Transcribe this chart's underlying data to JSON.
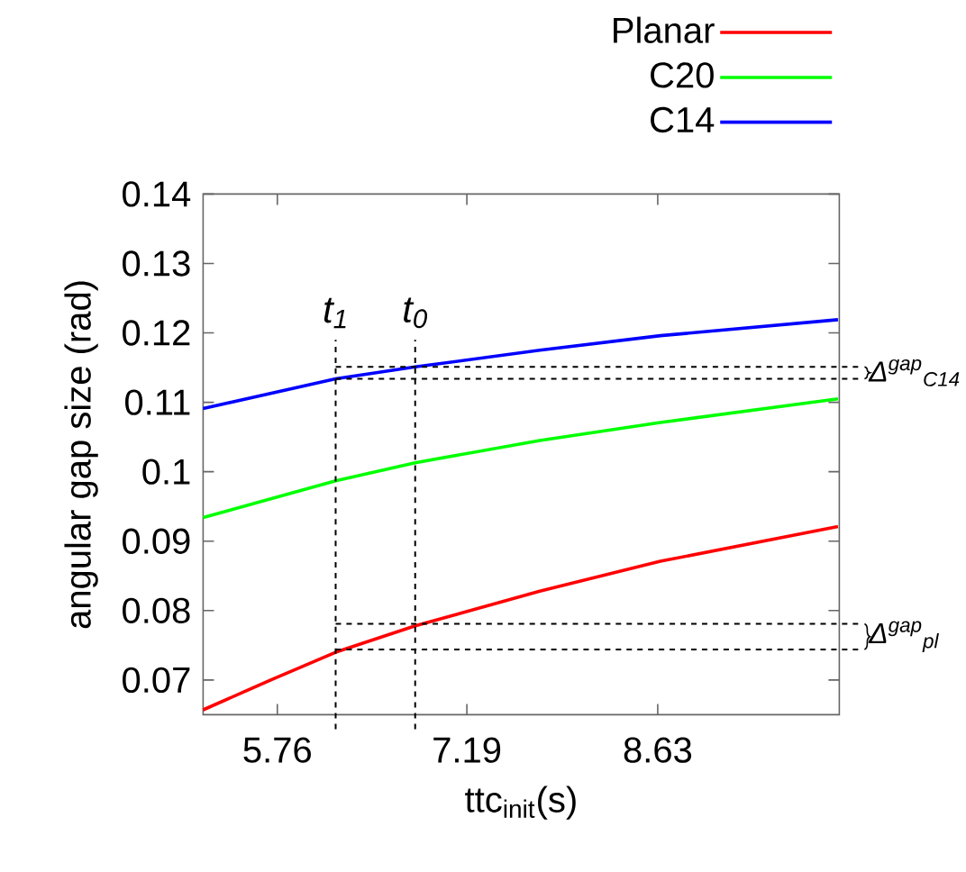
{
  "chart_data": {
    "type": "line",
    "xlabel": "ttc$_{init}$(s)",
    "ylabel": "angular gap size (rad)",
    "xlim": [
      5.2,
      10.0
    ],
    "ylim": [
      0.065,
      0.14
    ],
    "xticks": [
      5.76,
      7.19,
      8.63
    ],
    "yticks": [
      0.07,
      0.08,
      0.09,
      0.1,
      0.11,
      0.12,
      0.13,
      0.14
    ],
    "legend": "top",
    "series": [
      {
        "name": "Planar",
        "color": "#ff0000",
        "x": [
          5.2,
          5.71,
          6.2,
          6.8,
          7.74,
          8.65,
          9.99
        ],
        "values": [
          0.0657,
          0.07,
          0.074,
          0.0778,
          0.0828,
          0.0871,
          0.0921
        ]
      },
      {
        "name": "C20",
        "color": "#00ff00",
        "x": [
          5.2,
          6.2,
          6.8,
          7.74,
          8.65,
          9.99
        ],
        "values": [
          0.0934,
          0.0987,
          0.1013,
          0.1045,
          0.1071,
          0.1105
        ]
      },
      {
        "name": "C14",
        "color": "#0000ff",
        "x": [
          5.2,
          6.2,
          6.8,
          7.74,
          8.65,
          9.99
        ],
        "values": [
          0.1091,
          0.1134,
          0.1151,
          0.1175,
          0.1196,
          0.1219
        ]
      }
    ],
    "ref_lines": [
      {
        "axis": "x",
        "value": 6.2,
        "label": "t$_{1}$",
        "line_style": "dashed"
      },
      {
        "axis": "x",
        "value": 6.8,
        "label": "t$_{0}$",
        "line_style": "dashed"
      },
      {
        "axis": "y",
        "value": 0.1151,
        "line_style": "dashed"
      },
      {
        "axis": "y",
        "value": 0.1134,
        "line_style": "dashed"
      },
      {
        "axis": "y",
        "value": 0.0781,
        "line_style": "dashed"
      },
      {
        "axis": "y",
        "value": 0.0744,
        "line_style": "dashed"
      }
    ],
    "annotations": [
      "Δ$^{gap}$$_{C14}$",
      "Δ$^{gap}$$_{pl}$"
    ]
  }
}
